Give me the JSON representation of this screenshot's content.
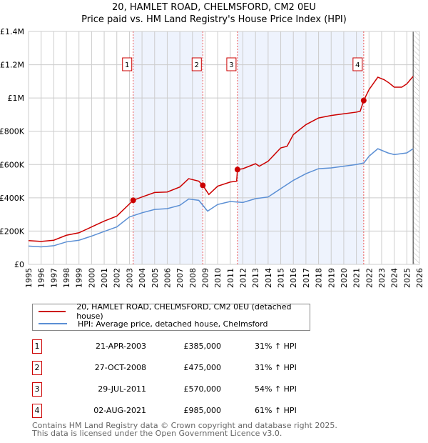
{
  "title": "20, HAMLET ROAD, CHELMSFORD, CM2 0EU",
  "subtitle": "Price paid vs. HM Land Registry's House Price Index (HPI)",
  "colors": {
    "property": "#cc0000",
    "hpi": "#5b8fd4",
    "shade": "#eef3fd"
  },
  "chart_data": {
    "type": "line",
    "xlim": [
      1995,
      2026
    ],
    "ylim": [
      0,
      1400000
    ],
    "yticks": [
      {
        "v": 0,
        "label": "£0"
      },
      {
        "v": 200000,
        "label": "£200K"
      },
      {
        "v": 400000,
        "label": "£400K"
      },
      {
        "v": 600000,
        "label": "£600K"
      },
      {
        "v": 800000,
        "label": "£800K"
      },
      {
        "v": 1000000,
        "label": "£1M"
      },
      {
        "v": 1200000,
        "label": "£1.2M"
      },
      {
        "v": 1400000,
        "label": "£1.4M"
      }
    ],
    "xticks": [
      1995,
      1996,
      1997,
      1998,
      1999,
      2000,
      2001,
      2002,
      2003,
      2004,
      2005,
      2006,
      2007,
      2008,
      2009,
      2010,
      2011,
      2012,
      2013,
      2014,
      2015,
      2016,
      2017,
      2018,
      2019,
      2020,
      2021,
      2022,
      2023,
      2024,
      2025,
      2026
    ],
    "series": [
      {
        "name": "20, HAMLET ROAD, CHELMSFORD, CM2 0EU (detached house)",
        "key": "property",
        "points": [
          [
            1995,
            143000
          ],
          [
            1996,
            138000
          ],
          [
            1997,
            145000
          ],
          [
            1998,
            175000
          ],
          [
            1999,
            190000
          ],
          [
            2000,
            225000
          ],
          [
            2001,
            260000
          ],
          [
            2002,
            290000
          ],
          [
            2003.3,
            385000
          ],
          [
            2004,
            405000
          ],
          [
            2005,
            432000
          ],
          [
            2006,
            435000
          ],
          [
            2007,
            465000
          ],
          [
            2007.7,
            515000
          ],
          [
            2008.5,
            500000
          ],
          [
            2008.82,
            475000
          ],
          [
            2009.3,
            420000
          ],
          [
            2010,
            470000
          ],
          [
            2011,
            495000
          ],
          [
            2011.5,
            500000
          ],
          [
            2011.57,
            570000
          ],
          [
            2012,
            575000
          ],
          [
            2013,
            605000
          ],
          [
            2013.3,
            590000
          ],
          [
            2014,
            620000
          ],
          [
            2015,
            700000
          ],
          [
            2015.5,
            710000
          ],
          [
            2016,
            780000
          ],
          [
            2017,
            840000
          ],
          [
            2018,
            880000
          ],
          [
            2019,
            895000
          ],
          [
            2020,
            905000
          ],
          [
            2021,
            915000
          ],
          [
            2021.3,
            920000
          ],
          [
            2021.58,
            985000
          ],
          [
            2022,
            1050000
          ],
          [
            2022.7,
            1125000
          ],
          [
            2023.2,
            1110000
          ],
          [
            2023.6,
            1090000
          ],
          [
            2024,
            1065000
          ],
          [
            2024.6,
            1065000
          ],
          [
            2025,
            1085000
          ],
          [
            2025.5,
            1130000
          ]
        ]
      },
      {
        "name": "HPI: Average price, detached house, Chelmsford",
        "key": "hpi",
        "points": [
          [
            1995,
            110000
          ],
          [
            1996,
            105000
          ],
          [
            1997,
            112000
          ],
          [
            1998,
            135000
          ],
          [
            1999,
            145000
          ],
          [
            2000,
            170000
          ],
          [
            2001,
            198000
          ],
          [
            2002,
            225000
          ],
          [
            2003,
            285000
          ],
          [
            2004,
            310000
          ],
          [
            2005,
            330000
          ],
          [
            2006,
            335000
          ],
          [
            2007,
            355000
          ],
          [
            2007.7,
            393000
          ],
          [
            2008.5,
            385000
          ],
          [
            2009.2,
            320000
          ],
          [
            2010,
            360000
          ],
          [
            2011,
            378000
          ],
          [
            2012,
            372000
          ],
          [
            2013,
            395000
          ],
          [
            2014,
            405000
          ],
          [
            2015,
            455000
          ],
          [
            2016,
            505000
          ],
          [
            2017,
            545000
          ],
          [
            2018,
            575000
          ],
          [
            2019,
            580000
          ],
          [
            2020,
            590000
          ],
          [
            2021,
            600000
          ],
          [
            2021.6,
            610000
          ],
          [
            2022,
            650000
          ],
          [
            2022.7,
            695000
          ],
          [
            2023.5,
            670000
          ],
          [
            2024,
            660000
          ],
          [
            2025,
            670000
          ],
          [
            2025.5,
            695000
          ]
        ]
      }
    ],
    "sales": [
      {
        "n": "1",
        "x": 2003.3,
        "y": 385000
      },
      {
        "n": "2",
        "x": 2008.82,
        "y": 475000
      },
      {
        "n": "3",
        "x": 2011.57,
        "y": 570000
      },
      {
        "n": "4",
        "x": 2021.58,
        "y": 985000
      }
    ],
    "shaded": [
      [
        2003.3,
        2008.82
      ],
      [
        2011.57,
        2021.58
      ]
    ],
    "hatched_from": 2025.5
  },
  "legend": {
    "property": "20, HAMLET ROAD, CHELMSFORD, CM2 0EU (detached house)",
    "hpi": "HPI: Average price, detached house, Chelmsford"
  },
  "table": [
    {
      "n": "1",
      "date": "21-APR-2003",
      "price": "£385,000",
      "hpi": "31% ↑ HPI"
    },
    {
      "n": "2",
      "date": "27-OCT-2008",
      "price": "£475,000",
      "hpi": "31% ↑ HPI"
    },
    {
      "n": "3",
      "date": "29-JUL-2011",
      "price": "£570,000",
      "hpi": "54% ↑ HPI"
    },
    {
      "n": "4",
      "date": "02-AUG-2021",
      "price": "£985,000",
      "hpi": "61% ↑ HPI"
    }
  ],
  "footer": [
    "Contains HM Land Registry data © Crown copyright and database right 2025.",
    "This data is licensed under the Open Government Licence v3.0."
  ]
}
